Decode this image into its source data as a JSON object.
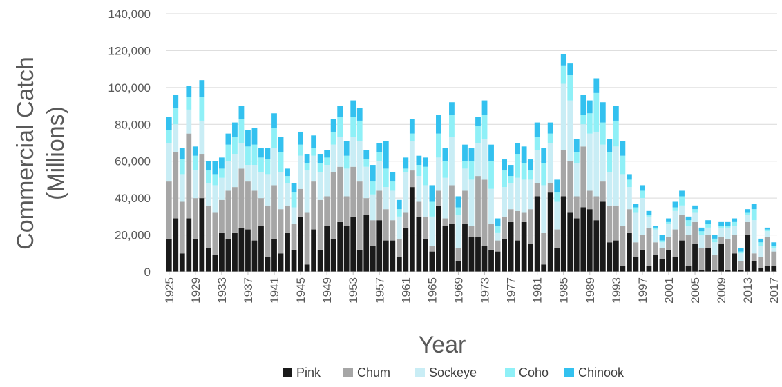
{
  "chart_data": {
    "type": "bar",
    "stacked": true,
    "xlabel": "Year",
    "ylabel_line1": "Commercial Catch",
    "ylabel_line2": "(Millions)",
    "ylim": [
      0,
      140000
    ],
    "yticks": [
      0,
      20000,
      40000,
      60000,
      80000,
      100000,
      120000,
      140000
    ],
    "ytick_labels": [
      "0",
      "20,000",
      "40,000",
      "60,000",
      "80,000",
      "100,000",
      "120,000",
      "140,000"
    ],
    "grid": true,
    "legend_position": "bottom",
    "year_start": 1925,
    "year_end": 2017,
    "xtick_labels": [
      "1925",
      "1929",
      "1933",
      "1937",
      "1941",
      "1945",
      "1949",
      "1953",
      "1957",
      "1961",
      "1965",
      "1969",
      "1973",
      "1977",
      "1981",
      "1985",
      "1989",
      "1993",
      "1997",
      "2001",
      "2005",
      "2009",
      "2013",
      "2017"
    ],
    "series": [
      {
        "name": "Pink",
        "color": "#1a1a1a",
        "values": [
          18000,
          29000,
          10000,
          29000,
          18000,
          40000,
          13000,
          9000,
          21000,
          18000,
          21000,
          24000,
          23000,
          17000,
          25000,
          8000,
          18000,
          10000,
          21000,
          12000,
          30000,
          4000,
          23000,
          12000,
          25000,
          18000,
          27000,
          25000,
          30000,
          12000,
          31000,
          14000,
          28000,
          17000,
          17000,
          8000,
          24000,
          46000,
          30000,
          18000,
          11000,
          36000,
          25000,
          26000,
          6000,
          26000,
          19000,
          19000,
          14000,
          12000,
          11000,
          18000,
          27000,
          17000,
          27000,
          15000,
          41000,
          4000,
          43000,
          13000,
          41000,
          32000,
          29000,
          35000,
          34000,
          28000,
          38000,
          16000,
          17000,
          3000,
          21000,
          8000,
          12000,
          3000,
          9000,
          7000,
          12000,
          8000,
          17000,
          3000,
          15000,
          1000,
          13000,
          1000,
          15000,
          1000,
          10000,
          1000,
          20000,
          6000,
          2000,
          3000,
          3000
        ]
      },
      {
        "name": "Chum",
        "color": "#a6a6a6",
        "values": [
          31000,
          36000,
          28000,
          46000,
          22000,
          24000,
          23000,
          23000,
          18000,
          26000,
          25000,
          32000,
          26000,
          27000,
          15000,
          28000,
          29000,
          24000,
          15000,
          14000,
          15000,
          28000,
          26000,
          27000,
          16000,
          36000,
          30000,
          16000,
          27000,
          37000,
          9000,
          14000,
          16000,
          17000,
          11000,
          10000,
          8000,
          9000,
          8000,
          12000,
          3000,
          8000,
          4000,
          21000,
          7000,
          18000,
          6000,
          33000,
          36000,
          14000,
          6000,
          12000,
          7000,
          16000,
          5000,
          19000,
          7000,
          17000,
          5000,
          10000,
          25000,
          28000,
          12000,
          33000,
          10000,
          13000,
          11000,
          20000,
          19000,
          22000,
          13000,
          8000,
          8000,
          21000,
          7000,
          6000,
          7000,
          15000,
          14000,
          17000,
          12000,
          12000,
          7000,
          8000,
          4000,
          17000,
          10000,
          5000,
          7000,
          4000,
          6000,
          16000,
          8000
        ]
      },
      {
        "name": "Sockeye",
        "color": "#c9edf5",
        "values": [
          21000,
          15000,
          15000,
          13000,
          15000,
          18000,
          12000,
          15000,
          12000,
          16000,
          18000,
          14000,
          9000,
          14000,
          14000,
          17000,
          20000,
          20000,
          12000,
          9000,
          18000,
          23000,
          14000,
          15000,
          17000,
          15000,
          16000,
          15000,
          16000,
          22000,
          17000,
          14000,
          16000,
          12000,
          16000,
          12000,
          22000,
          16000,
          14000,
          17000,
          16000,
          18000,
          22000,
          26000,
          18000,
          12000,
          25000,
          18000,
          22000,
          19000,
          4000,
          16000,
          14000,
          18000,
          18000,
          16000,
          18000,
          26000,
          22000,
          15000,
          36000,
          33000,
          18000,
          12000,
          31000,
          35000,
          20000,
          18000,
          32000,
          28000,
          12000,
          16000,
          20000,
          6000,
          7000,
          3000,
          7000,
          10000,
          5000,
          5000,
          5000,
          7000,
          4000,
          7000,
          5000,
          6000,
          5000,
          4000,
          4000,
          18000,
          6000,
          3000,
          2000
        ]
      },
      {
        "name": "Coho",
        "color": "#8ff0f7",
        "values": [
          7000,
          9000,
          8000,
          7000,
          8000,
          13000,
          7000,
          6000,
          5000,
          9000,
          9000,
          13000,
          10000,
          11000,
          8000,
          8000,
          11000,
          11000,
          4000,
          8000,
          6000,
          4000,
          4000,
          5000,
          4000,
          7000,
          11000,
          7000,
          11000,
          11000,
          4000,
          7000,
          5000,
          10000,
          5000,
          4000,
          2000,
          4000,
          6000,
          10000,
          8000,
          13000,
          9000,
          12000,
          4000,
          4000,
          10000,
          9000,
          13000,
          15000,
          4000,
          9000,
          4000,
          13000,
          9000,
          5000,
          7000,
          12000,
          5000,
          5000,
          10000,
          14000,
          6000,
          5000,
          11000,
          21000,
          12000,
          11000,
          14000,
          10000,
          4000,
          3000,
          4000,
          1000,
          1000,
          1000,
          1000,
          2000,
          5000,
          3000,
          2000,
          2000,
          2000,
          2000,
          1000,
          1000,
          2000,
          1000,
          1000,
          6000,
          2000,
          1000,
          1000
        ]
      },
      {
        "name": "Chinook",
        "color": "#33c1ef",
        "values": [
          7000,
          7000,
          6000,
          6000,
          5000,
          9000,
          5000,
          7000,
          6000,
          6000,
          8000,
          7000,
          9000,
          9000,
          5000,
          6000,
          8000,
          8000,
          4000,
          5000,
          7000,
          5000,
          7000,
          5000,
          4000,
          7000,
          6000,
          8000,
          9000,
          7000,
          5000,
          9000,
          5000,
          15000,
          5000,
          5000,
          6000,
          8000,
          5000,
          5000,
          9000,
          10000,
          7000,
          7000,
          6000,
          9000,
          7000,
          5000,
          8000,
          9000,
          4000,
          6000,
          6000,
          6000,
          9000,
          6000,
          8000,
          8000,
          6000,
          7000,
          6000,
          6000,
          7000,
          11000,
          7000,
          8000,
          11000,
          7000,
          8000,
          8000,
          3000,
          2000,
          3000,
          2000,
          1000,
          3000,
          2000,
          3000,
          3000,
          2000,
          2000,
          2000,
          2000,
          2000,
          2000,
          2000,
          2000,
          2000,
          2000,
          3000,
          2000,
          1000,
          2000
        ]
      }
    ]
  }
}
